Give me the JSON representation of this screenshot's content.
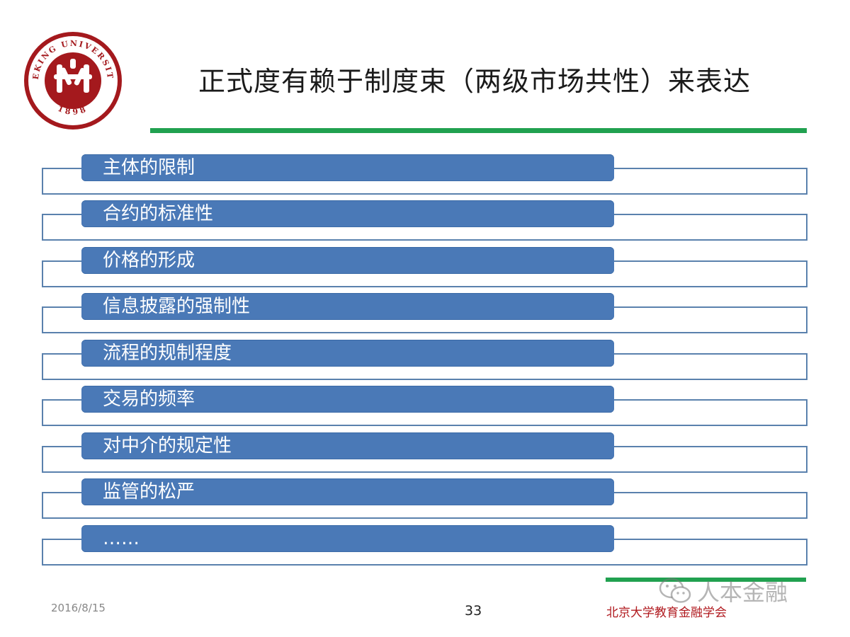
{
  "slide": {
    "title": "正式度有赖于制度束（两级市场共性）来表达",
    "items": [
      "主体的限制",
      "合约的标准性",
      "价格的形成",
      "信息披露的强制性",
      "流程的规制程度",
      "交易的频率",
      "对中介的规定性",
      "监管的松严",
      "……"
    ]
  },
  "logo": {
    "arc_text": "PEKING UNIVERSITY",
    "year": "1898",
    "color": "#a4191d"
  },
  "footer": {
    "date": "2016/8/15",
    "page_number": "33",
    "organization": "北京大学教育金融学会"
  },
  "watermark": {
    "text": "人本金融",
    "icon": "wechat-icon"
  },
  "colors": {
    "accent_green": "#21a150",
    "bar_blue": "#4a79b7",
    "outline_blue": "#5a81ad"
  }
}
